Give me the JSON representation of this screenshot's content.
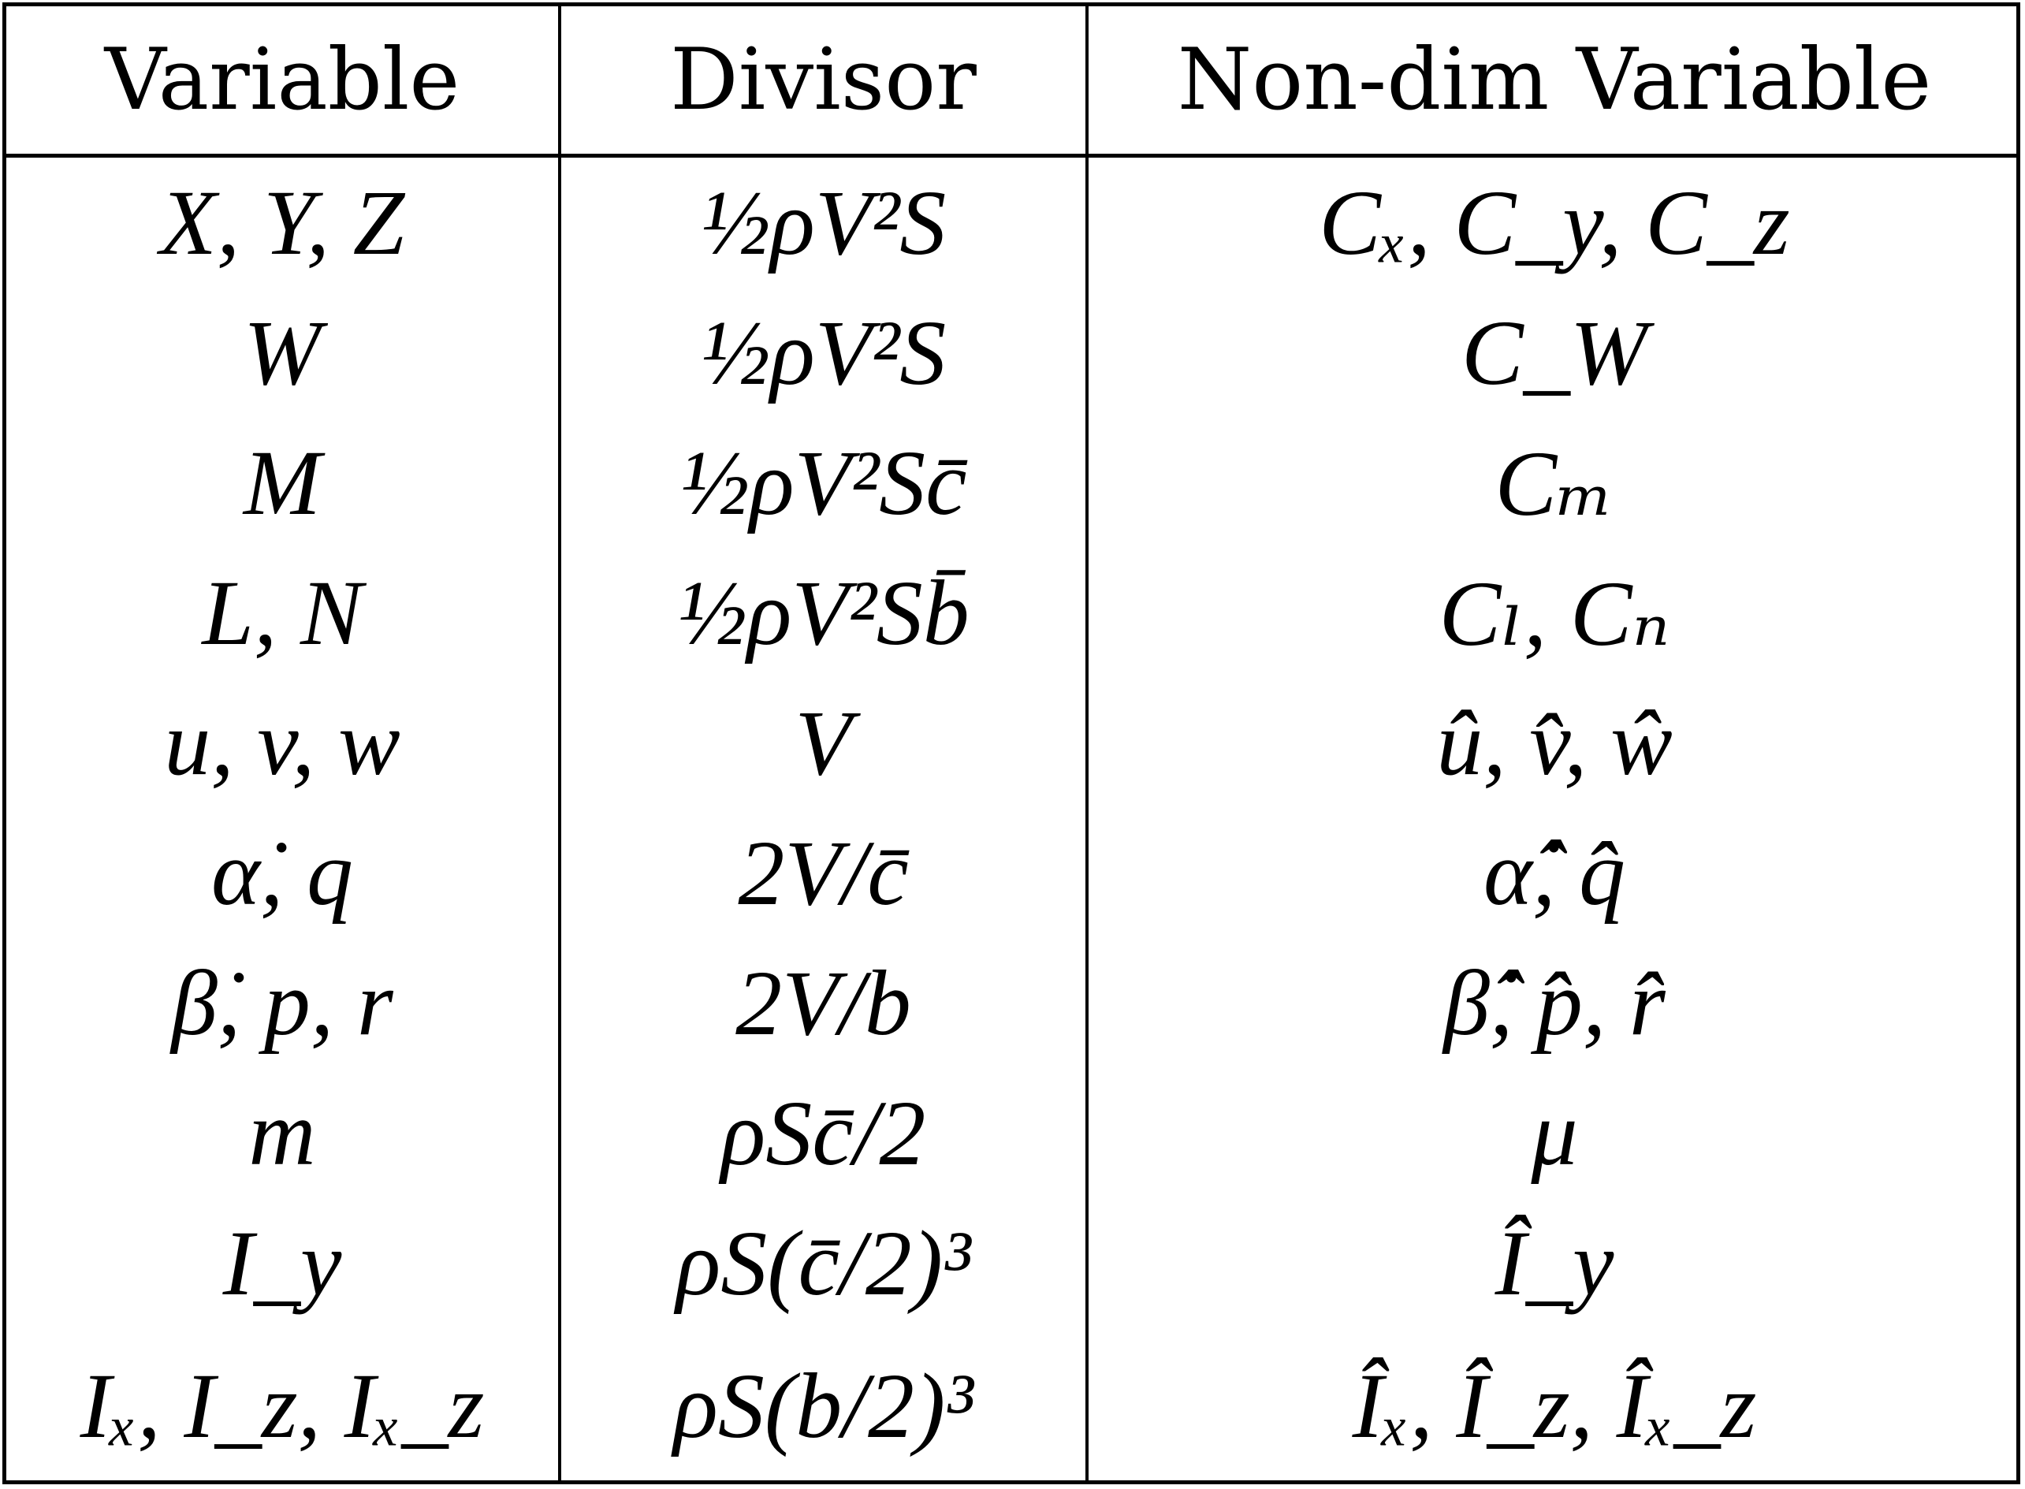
{
  "table": {
    "headers": [
      "Variable",
      "Divisor",
      "Non-dim Variable"
    ],
    "rows": [
      [
        "X, Y, Z",
        "½ρV²S",
        "Cₓ, C_y, C_z"
      ],
      [
        "W",
        "½ρV²S",
        "C_W"
      ],
      [
        "M",
        "½ρV²Sc̄",
        "Cₘ"
      ],
      [
        "L, N",
        "½ρV²Sb̄",
        "Cₗ, Cₙ"
      ],
      [
        "u, v, w",
        "V",
        "û, v̂, ŵ"
      ],
      [
        "α̇, q",
        "2V/c̄",
        "α̇̂, q̂"
      ],
      [
        "β̇, p, r",
        "2V/b",
        "β̇̂, p̂, r̂"
      ],
      [
        "m",
        "ρSc̄/2",
        "μ"
      ],
      [
        "I_y",
        "ρS(c̄/2)³",
        "Î_y"
      ],
      [
        "Iₓ, I_z, Iₓ_z",
        "ρS(b/2)³",
        "Îₓ, Î_z, Îₓ_z"
      ]
    ]
  }
}
